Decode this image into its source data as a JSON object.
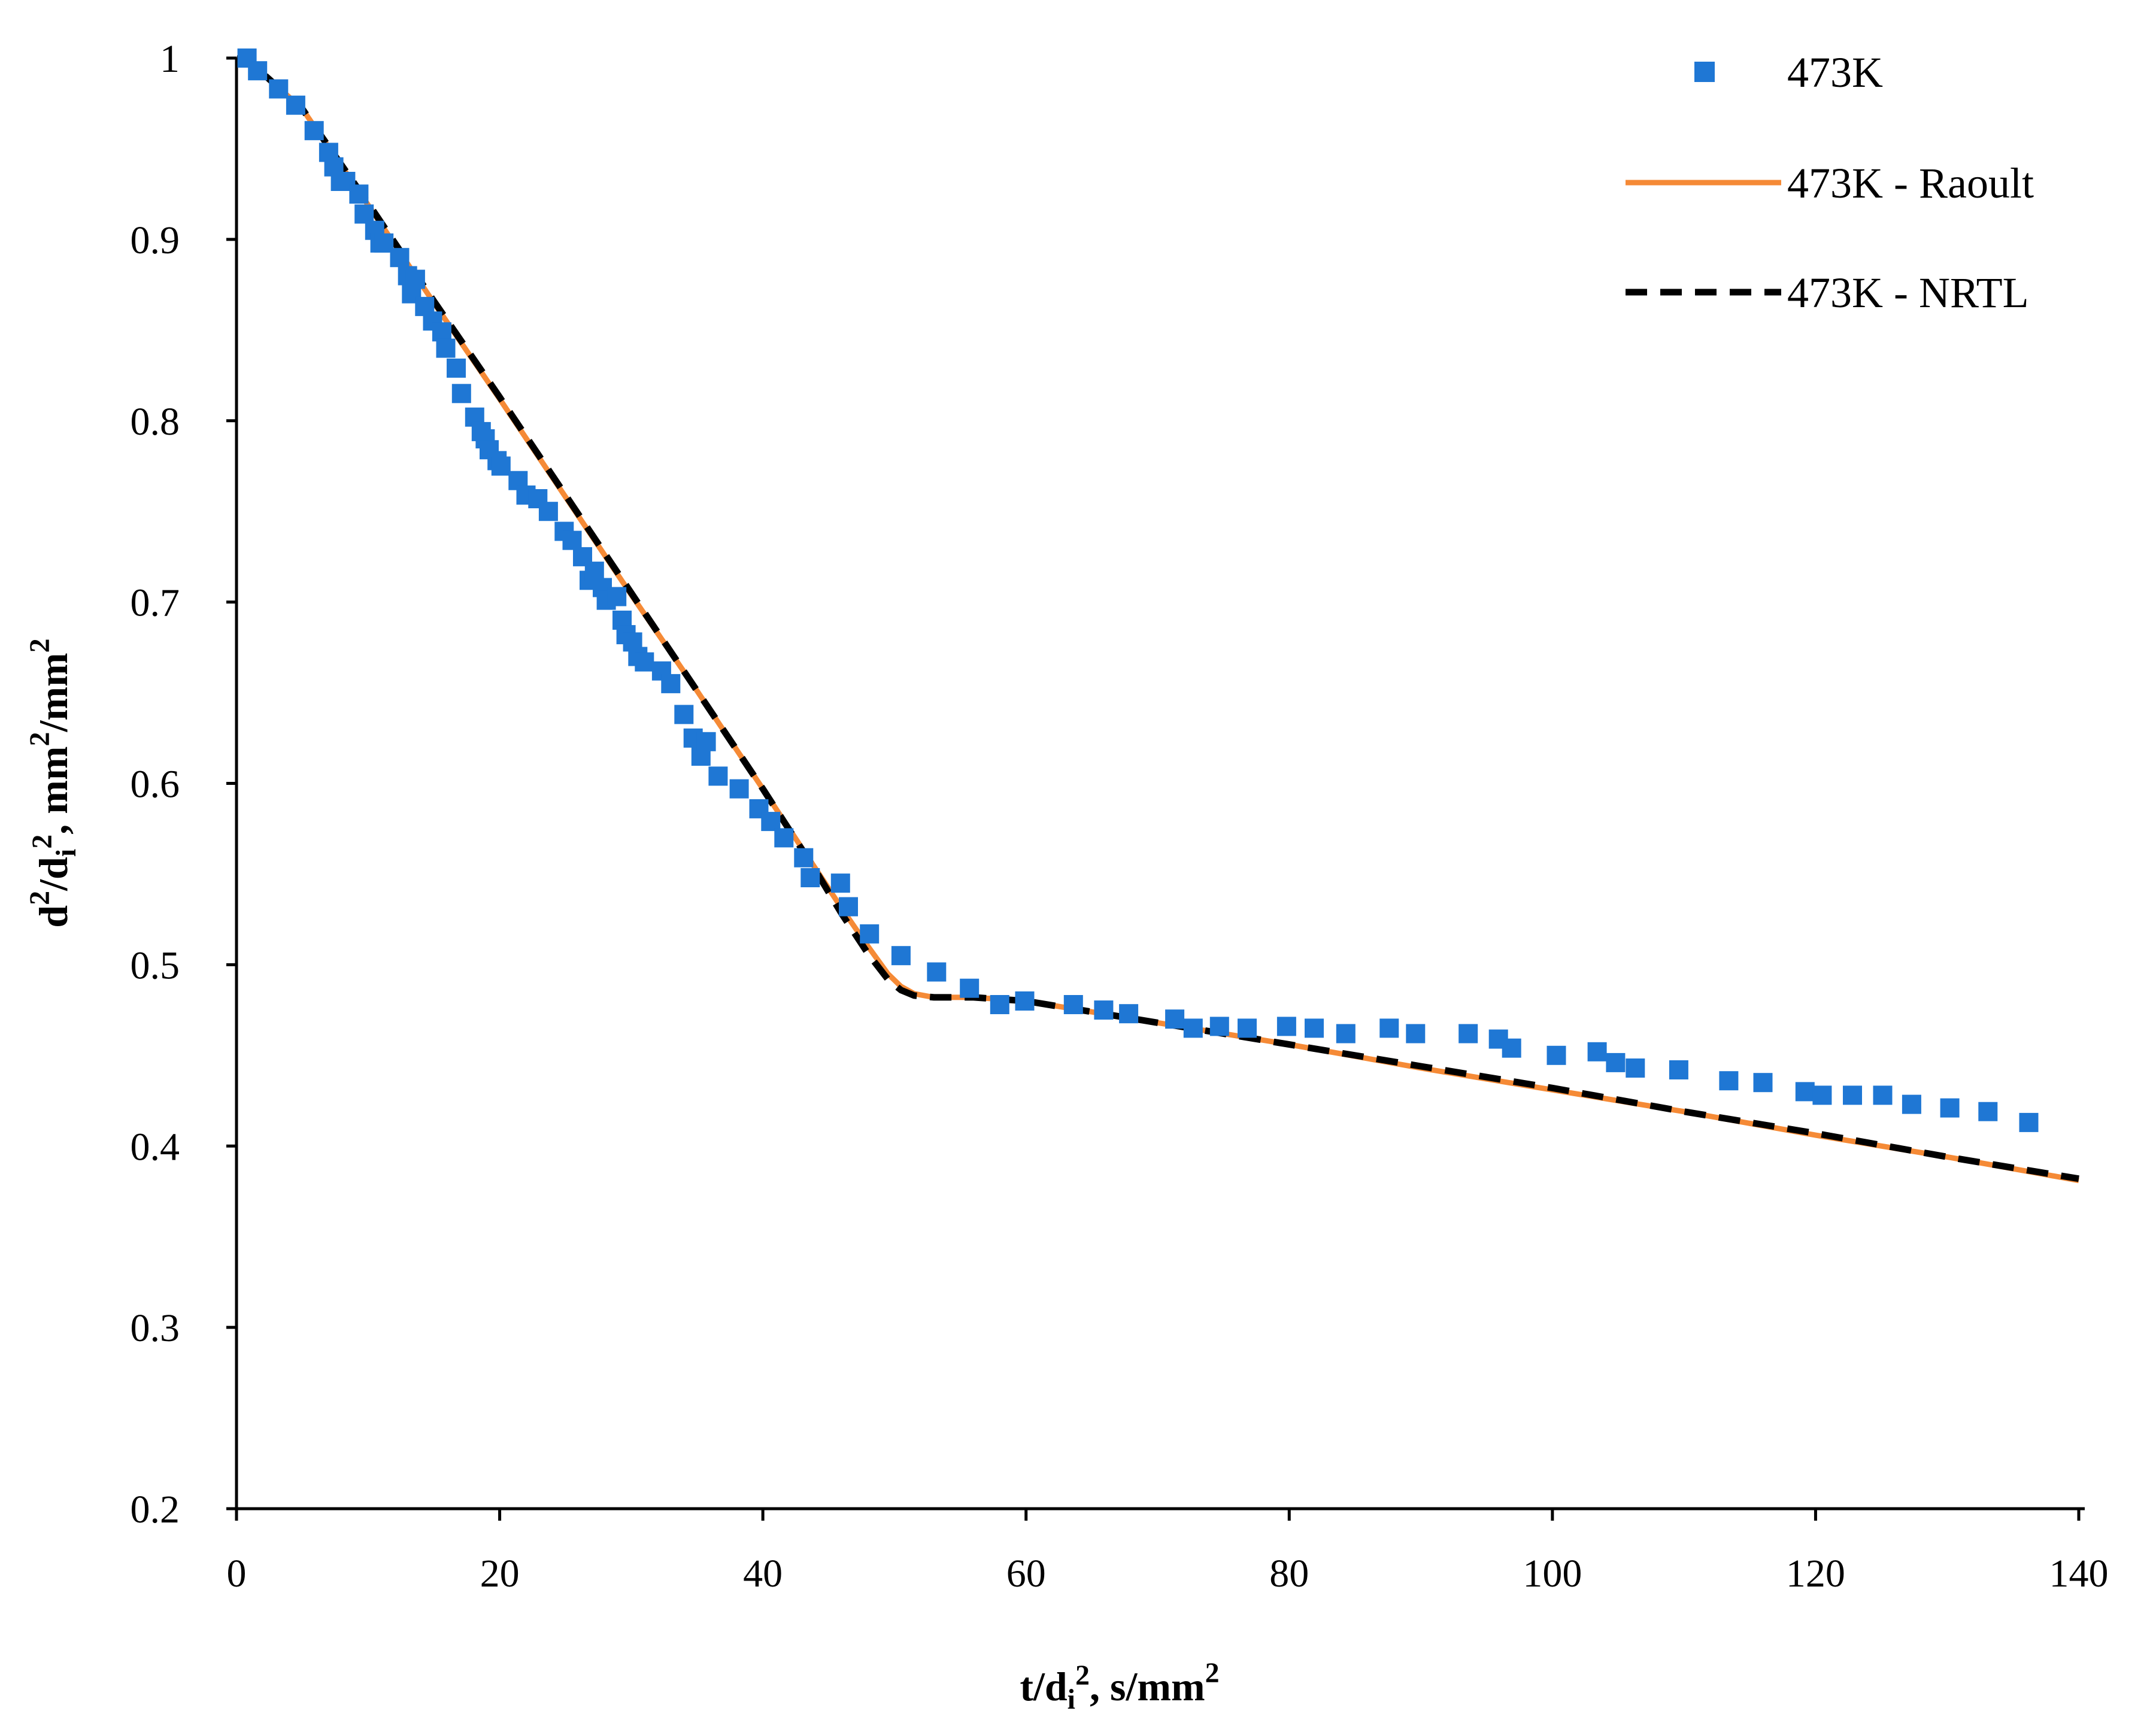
{
  "chart_data": {
    "type": "scatter+line",
    "title": "",
    "xlabel": "t/di2, s/mm2",
    "ylabel": "d2/di2, mm2/mm2",
    "xlim": [
      0,
      140
    ],
    "ylim": [
      0.2,
      1.0
    ],
    "xticks": [
      "0",
      "20",
      "40",
      "60",
      "80",
      "100",
      "120",
      "140"
    ],
    "yticks": [
      "0.2",
      "0.3",
      "0.4",
      "0.5",
      "0.6",
      "0.7",
      "0.8",
      "0.9",
      "1"
    ],
    "xtick_values": [
      0,
      20,
      40,
      60,
      80,
      100,
      120,
      140
    ],
    "ytick_values": [
      0.2,
      0.3,
      0.4,
      0.5,
      0.6,
      0.7,
      0.8,
      0.9,
      1.0
    ],
    "legend_position": "top-right",
    "series": [
      {
        "name": "473K",
        "kind": "scatter",
        "marker": "square",
        "color": "#1f77d4",
        "x": [
          0.8,
          1.6,
          3.2,
          4.5,
          5.9,
          7.0,
          7.4,
          7.9,
          8.3,
          9.3,
          9.7,
          10.5,
          10.9,
          11.2,
          12.4,
          13.0,
          13.3,
          13.6,
          14.3,
          14.9,
          15.6,
          15.9,
          16.7,
          17.1,
          18.1,
          18.6,
          18.9,
          19.2,
          19.8,
          20.1,
          21.4,
          22.0,
          22.9,
          23.7,
          24.9,
          25.5,
          26.3,
          26.8,
          27.2,
          27.8,
          28.1,
          28.9,
          29.3,
          29.6,
          30.1,
          30.5,
          31.0,
          32.3,
          33.0,
          34.0,
          34.7,
          35.3,
          35.7,
          36.6,
          38.2,
          39.7,
          40.6,
          41.6,
          43.1,
          43.6,
          45.9,
          46.5,
          48.1,
          50.5,
          53.2,
          55.7,
          58.0,
          59.9,
          63.6,
          65.9,
          67.8,
          71.3,
          72.7,
          74.7,
          76.8,
          79.8,
          81.9,
          84.3,
          87.6,
          89.6,
          93.6,
          95.9,
          96.9,
          100.3,
          103.4,
          104.8,
          106.3,
          109.6,
          113.4,
          116.0,
          119.2,
          120.5,
          122.8,
          125.1,
          127.3,
          130.2,
          133.1,
          136.2
        ],
        "y": [
          1.0,
          0.993,
          0.983,
          0.974,
          0.96,
          0.948,
          0.94,
          0.932,
          0.932,
          0.925,
          0.914,
          0.905,
          0.898,
          0.898,
          0.89,
          0.88,
          0.87,
          0.878,
          0.863,
          0.855,
          0.849,
          0.84,
          0.829,
          0.815,
          0.802,
          0.794,
          0.79,
          0.784,
          0.778,
          0.775,
          0.767,
          0.759,
          0.757,
          0.75,
          0.739,
          0.734,
          0.725,
          0.712,
          0.717,
          0.708,
          0.701,
          0.703,
          0.69,
          0.682,
          0.678,
          0.67,
          0.667,
          0.662,
          0.655,
          0.638,
          0.625,
          0.615,
          0.623,
          0.604,
          0.597,
          0.586,
          0.579,
          0.57,
          0.559,
          0.548,
          0.545,
          0.532,
          0.517,
          0.505,
          0.496,
          0.487,
          0.478,
          0.48,
          0.478,
          0.475,
          0.473,
          0.47,
          0.465,
          0.466,
          0.465,
          0.466,
          0.465,
          0.462,
          0.465,
          0.462,
          0.462,
          0.459,
          0.454,
          0.45,
          0.452,
          0.446,
          0.443,
          0.442,
          0.436,
          0.435,
          0.43,
          0.428,
          0.428,
          0.428,
          0.423,
          0.421,
          0.419,
          0.413
        ]
      },
      {
        "name": "473K - Raoult",
        "kind": "line",
        "style": "solid",
        "color": "#f58a36",
        "x": [
          0,
          1,
          5,
          10,
          15,
          20,
          25,
          30,
          35,
          40,
          44,
          46,
          48,
          49.5,
          50.5,
          51.5,
          53,
          56,
          60,
          70,
          80,
          90,
          100,
          110,
          120,
          130,
          140
        ],
        "y": [
          1.0,
          0.998,
          0.972,
          0.919,
          0.865,
          0.812,
          0.758,
          0.704,
          0.651,
          0.597,
          0.553,
          0.531,
          0.51,
          0.495,
          0.488,
          0.484,
          0.482,
          0.482,
          0.48,
          0.468,
          0.456,
          0.443,
          0.431,
          0.419,
          0.406,
          0.394,
          0.381
        ]
      },
      {
        "name": "473K - NRTL",
        "kind": "line",
        "style": "dashed",
        "color": "#000000",
        "x": [
          0,
          1,
          5,
          10,
          15,
          20,
          25,
          30,
          35,
          40,
          44,
          46,
          48,
          49.5,
          50.5,
          51.5,
          53,
          56,
          60,
          70,
          80,
          90,
          100,
          110,
          120,
          130,
          140
        ],
        "y": [
          1.0,
          0.998,
          0.972,
          0.92,
          0.866,
          0.813,
          0.759,
          0.705,
          0.651,
          0.597,
          0.552,
          0.528,
          0.506,
          0.492,
          0.486,
          0.483,
          0.482,
          0.482,
          0.48,
          0.468,
          0.456,
          0.444,
          0.432,
          0.419,
          0.407,
          0.394,
          0.382
        ]
      }
    ]
  }
}
